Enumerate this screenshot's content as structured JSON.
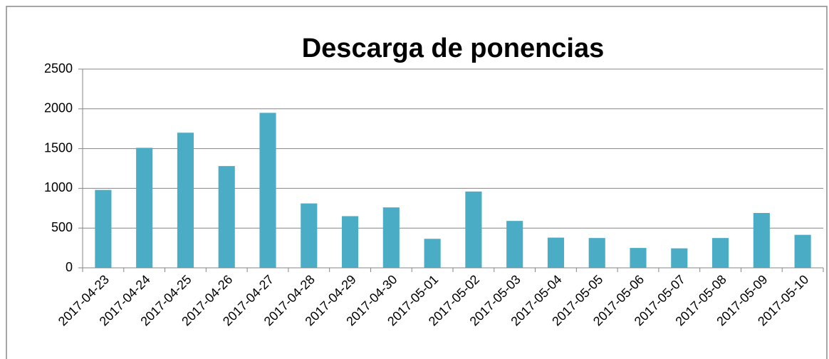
{
  "chart_data": {
    "type": "bar",
    "title": "Descarga de ponencias",
    "categories": [
      "2017-04-23",
      "2017-04-24",
      "2017-04-25",
      "2017-04-26",
      "2017-04-27",
      "2017-04-28",
      "2017-04-29",
      "2017-04-30",
      "2017-05-01",
      "2017-05-02",
      "2017-05-03",
      "2017-05-04",
      "2017-05-05",
      "2017-05-06",
      "2017-05-07",
      "2017-05-08",
      "2017-05-09",
      "2017-05-10"
    ],
    "values": [
      980,
      1510,
      1700,
      1280,
      1950,
      810,
      650,
      760,
      365,
      960,
      590,
      380,
      375,
      250,
      245,
      375,
      690,
      415
    ],
    "color": "#4bacc6",
    "ylim": [
      0,
      2500
    ],
    "yticks": [
      0,
      500,
      1000,
      1500,
      2000,
      2500
    ],
    "grid": true
  }
}
